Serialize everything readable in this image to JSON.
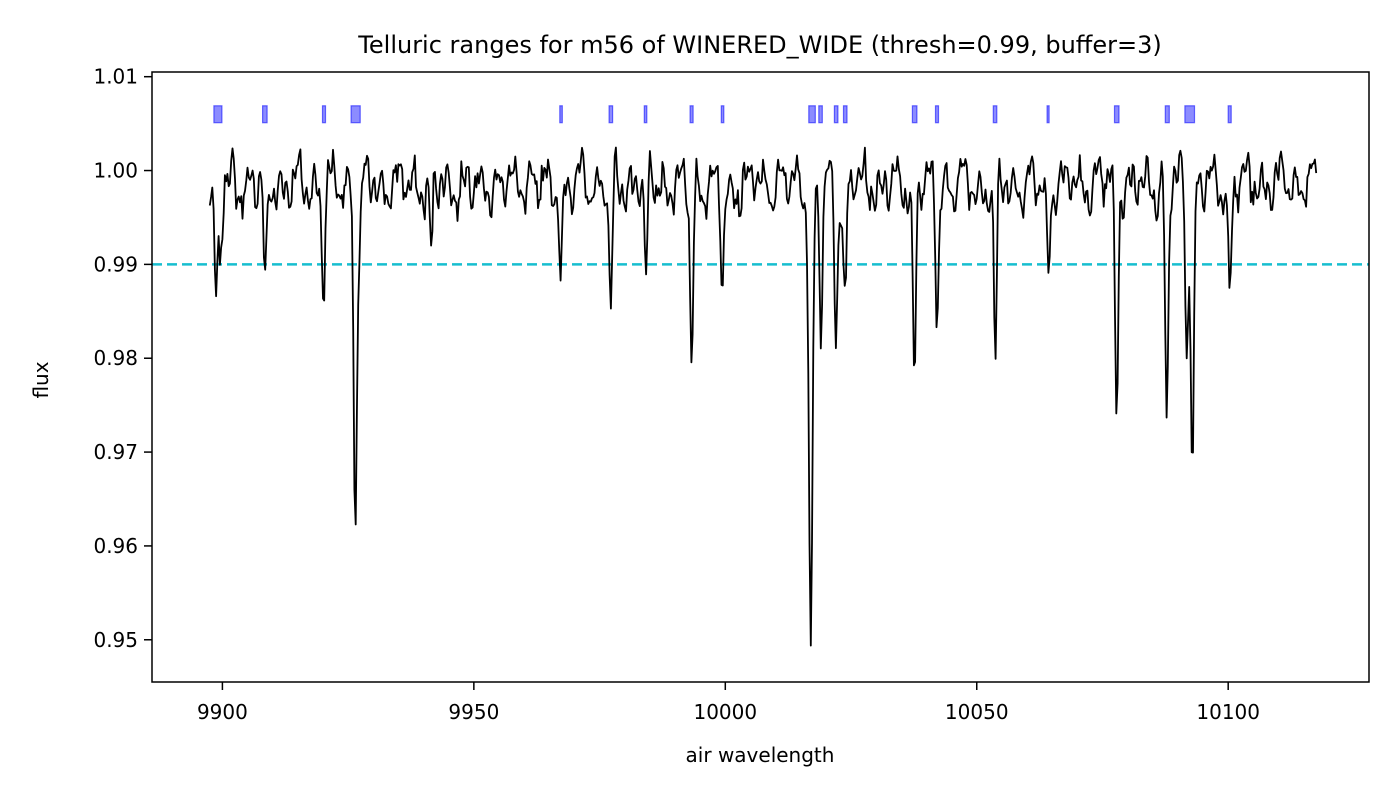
{
  "chart_data": {
    "type": "line",
    "title": "Telluric ranges for m56 of WINERED_WIDE (thresh=0.99, buffer=3)",
    "xlabel": "air wavelength",
    "ylabel": "flux",
    "xlim": [
      9886,
      10128
    ],
    "ylim": [
      0.9455,
      1.0105
    ],
    "xticks": [
      9900,
      9950,
      10000,
      10050,
      10100
    ],
    "xtick_labels": [
      "9900",
      "9950",
      "10000",
      "10050",
      "10100"
    ],
    "yticks": [
      0.95,
      0.96,
      0.97,
      0.98,
      0.99,
      1.0,
      1.01
    ],
    "ytick_labels": [
      "0.95",
      "0.96",
      "0.97",
      "0.98",
      "0.99",
      "1.00",
      "1.01"
    ],
    "grid": false,
    "threshold": {
      "value": 0.99,
      "color": "#17becf",
      "style": "dashed"
    },
    "spectrum": {
      "color": "#000000",
      "x_start": 9897.5,
      "x_end": 10117.5,
      "continuum": 0.9985,
      "absorption_lines": [
        {
          "center": 9898.7,
          "depth": 0.012,
          "width": 0.35
        },
        {
          "center": 9899.6,
          "depth": 0.008,
          "width": 0.3
        },
        {
          "center": 9908.5,
          "depth": 0.0125,
          "width": 0.3
        },
        {
          "center": 9920.1,
          "depth": 0.011,
          "width": 0.3
        },
        {
          "center": 9926.4,
          "depth": 0.035,
          "width": 0.3
        },
        {
          "center": 9927.2,
          "depth": 0.008,
          "width": 0.35
        },
        {
          "center": 9941.5,
          "depth": 0.008,
          "width": 0.3
        },
        {
          "center": 9967.3,
          "depth": 0.0095,
          "width": 0.3
        },
        {
          "center": 9977.2,
          "depth": 0.0145,
          "width": 0.3
        },
        {
          "center": 9984.2,
          "depth": 0.011,
          "width": 0.3
        },
        {
          "center": 9993.3,
          "depth": 0.0195,
          "width": 0.3
        },
        {
          "center": 9999.4,
          "depth": 0.0115,
          "width": 0.3
        },
        {
          "center": 10017.0,
          "depth": 0.05,
          "width": 0.35
        },
        {
          "center": 10019.0,
          "depth": 0.015,
          "width": 0.3
        },
        {
          "center": 10022.0,
          "depth": 0.016,
          "width": 0.3
        },
        {
          "center": 10023.8,
          "depth": 0.0135,
          "width": 0.3
        },
        {
          "center": 10037.6,
          "depth": 0.0205,
          "width": 0.3
        },
        {
          "center": 10042.1,
          "depth": 0.0145,
          "width": 0.3
        },
        {
          "center": 10053.7,
          "depth": 0.0195,
          "width": 0.3
        },
        {
          "center": 10064.2,
          "depth": 0.0085,
          "width": 0.3
        },
        {
          "center": 10077.8,
          "depth": 0.0245,
          "width": 0.3
        },
        {
          "center": 10087.8,
          "depth": 0.026,
          "width": 0.3
        },
        {
          "center": 10091.8,
          "depth": 0.017,
          "width": 0.3
        },
        {
          "center": 10092.9,
          "depth": 0.031,
          "width": 0.3
        },
        {
          "center": 10100.3,
          "depth": 0.011,
          "width": 0.3
        }
      ]
    },
    "telluric_ranges": {
      "color": "#0000ff",
      "y_range": [
        1.0051,
        1.0069
      ],
      "ranges": [
        [
          9898.3,
          9899.9
        ],
        [
          9908.0,
          9908.9
        ],
        [
          9919.9,
          9920.5
        ],
        [
          9925.6,
          9927.4
        ],
        [
          9967.1,
          9967.6
        ],
        [
          9976.9,
          9977.6
        ],
        [
          9983.9,
          9984.4
        ],
        [
          9993.0,
          9993.6
        ],
        [
          9999.2,
          9999.7
        ],
        [
          10016.6,
          10017.9
        ],
        [
          10018.6,
          10019.3
        ],
        [
          10021.7,
          10022.4
        ],
        [
          10023.5,
          10024.2
        ],
        [
          10037.2,
          10038.1
        ],
        [
          10041.8,
          10042.4
        ],
        [
          10053.3,
          10054.0
        ],
        [
          10064.0,
          10064.4
        ],
        [
          10077.4,
          10078.3
        ],
        [
          10087.5,
          10088.3
        ],
        [
          10091.4,
          10093.3
        ],
        [
          10100.0,
          10100.6
        ]
      ]
    }
  }
}
